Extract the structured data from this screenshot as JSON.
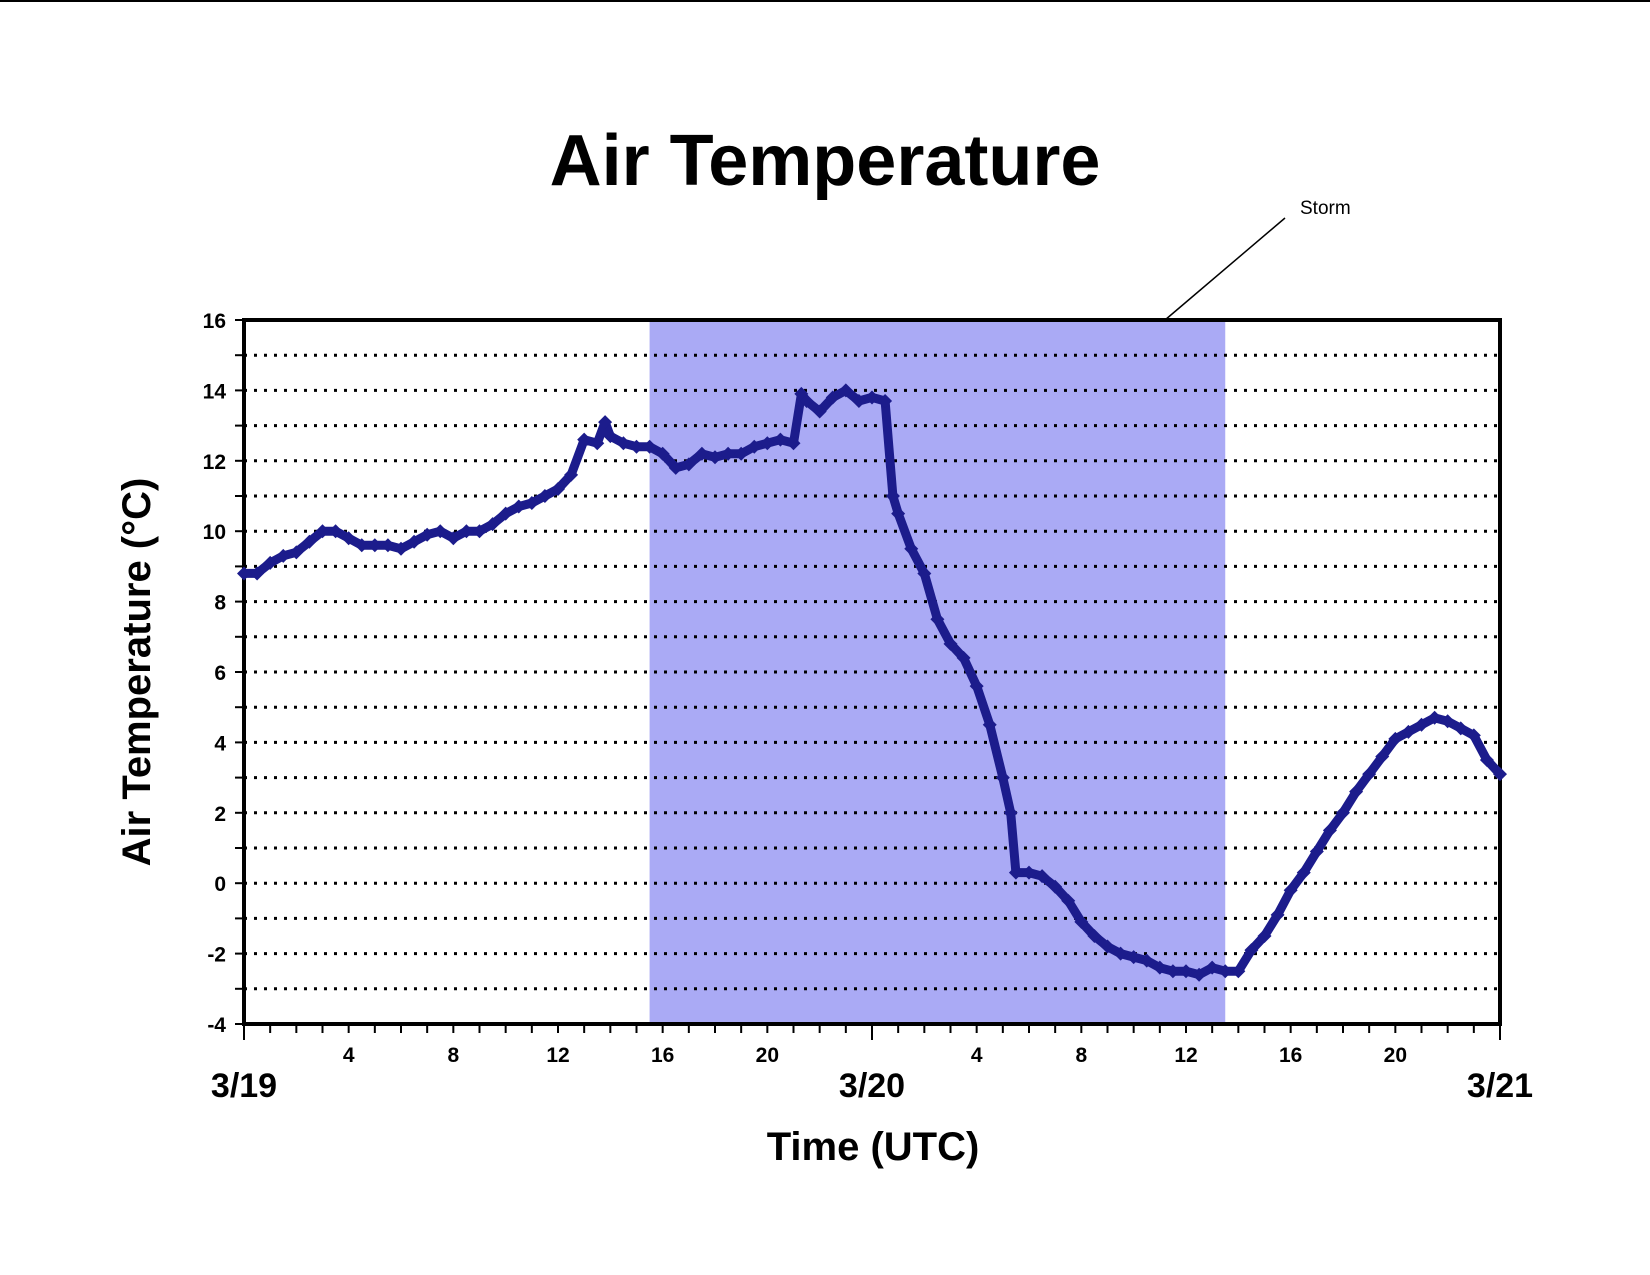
{
  "chart_data": {
    "type": "line",
    "title": "Air Temperature",
    "xlabel": "Time (UTC)",
    "ylabel": "Air Temperature (°C)",
    "ylim": [
      -4,
      16
    ],
    "y_ticks": [
      -4,
      -2,
      0,
      2,
      4,
      6,
      8,
      10,
      12,
      14,
      16
    ],
    "xlim_hours": [
      0,
      48
    ],
    "x_hour_ticks": [
      {
        "hour": 4,
        "label": "4"
      },
      {
        "hour": 8,
        "label": "8"
      },
      {
        "hour": 12,
        "label": "12"
      },
      {
        "hour": 16,
        "label": "16"
      },
      {
        "hour": 20,
        "label": "20"
      },
      {
        "hour": 28,
        "label": "4"
      },
      {
        "hour": 32,
        "label": "8"
      },
      {
        "hour": 36,
        "label": "12"
      },
      {
        "hour": 40,
        "label": "16"
      },
      {
        "hour": 44,
        "label": "20"
      }
    ],
    "x_date_labels": [
      {
        "hour": 0,
        "label": "3/19"
      },
      {
        "hour": 24,
        "label": "3/20"
      },
      {
        "hour": 48,
        "label": "3/21"
      }
    ],
    "grid": "horizontal dotted every 1 °C",
    "annotation": {
      "text": "Storm",
      "shaded_hours": [
        15.5,
        37.5
      ],
      "color": "#aaaaf5"
    },
    "series": [
      {
        "color": "#1c1c8c",
        "marker": "diamond",
        "x": [
          0,
          0.5,
          1,
          1.5,
          2,
          2.5,
          3,
          3.5,
          4,
          4.5,
          5,
          5.5,
          6,
          6.5,
          7,
          7.5,
          8,
          8.5,
          9,
          9.5,
          10,
          10.5,
          11,
          11.5,
          12,
          12.5,
          13,
          13.5,
          13.8,
          14,
          14.5,
          15,
          15.5,
          16,
          16.5,
          17,
          17.5,
          18,
          18.5,
          19,
          19.5,
          20,
          20.5,
          21,
          21.3,
          21.5,
          22,
          22.5,
          23,
          23.5,
          24,
          24.5,
          24.8,
          25,
          25.5,
          26,
          26.5,
          27,
          27.5,
          28,
          28.5,
          29,
          29.3,
          29.5,
          30,
          30.5,
          31,
          31.5,
          32,
          32.5,
          33,
          33.5,
          34,
          34.5,
          35,
          35.5,
          36,
          36.5,
          37,
          37.5,
          38,
          38.5,
          39,
          39.5,
          40,
          40.5,
          41,
          41.5,
          42,
          42.5,
          43,
          43.5,
          44,
          44.5,
          45,
          45.5,
          46,
          46.5,
          47,
          47.5,
          48
        ],
        "y": [
          8.8,
          8.8,
          9.1,
          9.3,
          9.4,
          9.7,
          10.0,
          10.0,
          9.8,
          9.6,
          9.6,
          9.6,
          9.5,
          9.7,
          9.9,
          10.0,
          9.8,
          10.0,
          10.0,
          10.2,
          10.5,
          10.7,
          10.8,
          11.0,
          11.2,
          11.6,
          12.6,
          12.5,
          13.1,
          12.7,
          12.5,
          12.4,
          12.4,
          12.2,
          11.8,
          11.9,
          12.2,
          12.1,
          12.2,
          12.2,
          12.4,
          12.5,
          12.6,
          12.5,
          13.9,
          13.7,
          13.4,
          13.8,
          14.0,
          13.7,
          13.8,
          13.7,
          11.0,
          10.5,
          9.5,
          8.8,
          7.5,
          6.8,
          6.4,
          5.6,
          4.5,
          3.0,
          2.0,
          0.3,
          0.3,
          0.2,
          -0.1,
          -0.5,
          -1.1,
          -1.5,
          -1.8,
          -2.0,
          -2.1,
          -2.2,
          -2.4,
          -2.5,
          -2.5,
          -2.6,
          -2.4,
          -2.5,
          -2.5,
          -1.9,
          -1.5,
          -0.9,
          -0.2,
          0.3,
          0.9,
          1.5,
          2.0,
          2.6,
          3.1,
          3.6,
          4.1,
          4.3,
          4.5,
          4.7,
          4.6,
          4.4,
          4.2,
          3.5,
          3.1
        ]
      }
    ]
  }
}
